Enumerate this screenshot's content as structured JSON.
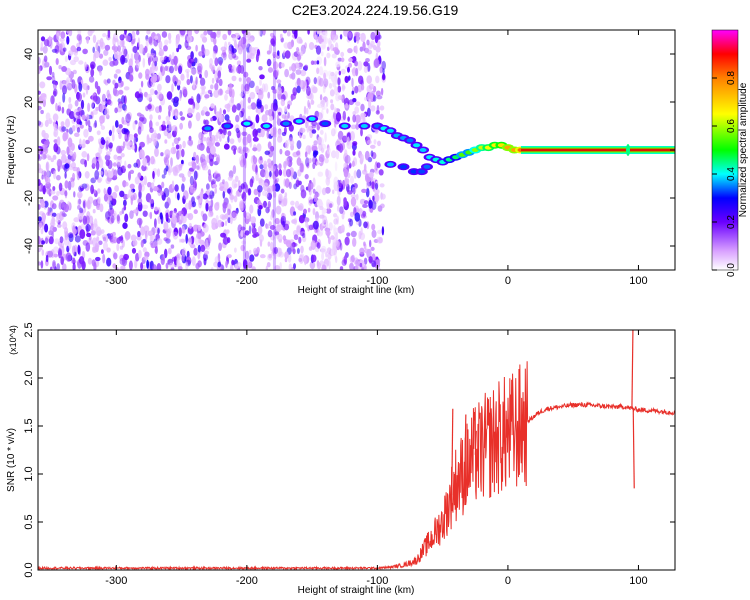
{
  "title": "C2E3.2024.224.19.56.G19",
  "chart_data": [
    {
      "type": "heatmap",
      "xlabel": "Height of straight line (km)",
      "ylabel": "Frequency (Hz)",
      "xlim": [
        -360,
        128
      ],
      "ylim": [
        -50,
        50
      ],
      "xticks": [
        -300,
        -200,
        -100,
        0,
        100
      ],
      "yticks": [
        -40,
        -20,
        0,
        20,
        40
      ],
      "colorbar": {
        "label": "Normalized spectral amplitude",
        "range": [
          0,
          1
        ],
        "ticks": [
          0.0,
          0.2,
          0.4,
          0.6,
          0.8
        ],
        "colormap": "white-purple-blue-cyan-green-yellow-red"
      },
      "noise_region_x": [
        -360,
        -95
      ],
      "ridge": [
        [
          -230,
          9
        ],
        [
          -215,
          10
        ],
        [
          -200,
          11
        ],
        [
          -185,
          10
        ],
        [
          -170,
          11
        ],
        [
          -160,
          12
        ],
        [
          -150,
          13
        ],
        [
          -140,
          11
        ],
        [
          -125,
          10
        ],
        [
          -110,
          10
        ],
        [
          -100,
          10
        ],
        [
          -95,
          9
        ],
        [
          -90,
          8
        ],
        [
          -85,
          6
        ],
        [
          -80,
          5
        ],
        [
          -75,
          4
        ],
        [
          -70,
          2
        ],
        [
          -65,
          0
        ],
        [
          -60,
          -3
        ],
        [
          -55,
          -4
        ],
        [
          -50,
          -5
        ],
        [
          -45,
          -4
        ],
        [
          -40,
          -3
        ],
        [
          -35,
          -2
        ],
        [
          -30,
          -1
        ],
        [
          -25,
          0
        ],
        [
          -20,
          1
        ],
        [
          -15,
          1
        ],
        [
          -10,
          2
        ],
        [
          -5,
          2
        ],
        [
          0,
          1
        ],
        [
          5,
          0
        ],
        [
          10,
          0
        ]
      ],
      "lower_branch": [
        [
          -90,
          -6
        ],
        [
          -80,
          -7
        ],
        [
          -72,
          -9
        ],
        [
          -66,
          -9
        ],
        [
          -62,
          -7
        ]
      ],
      "carrier": {
        "x_start": 10,
        "x_end": 128,
        "freq": 0,
        "amplitude": 1.0
      },
      "spike_x": 92
    },
    {
      "type": "line",
      "xlabel": "Height of straight line (km)",
      "ylabel": "SNR (10 * v/v)",
      "y_multiplier": "(x10^4)",
      "xlim": [
        -360,
        128
      ],
      "ylim": [
        0,
        2.5
      ],
      "xticks": [
        -300,
        -200,
        -100,
        0,
        100
      ],
      "yticks": [
        0.0,
        0.5,
        1.0,
        1.5,
        2.0,
        2.5
      ],
      "series": [
        {
          "color": "#e8302a",
          "x": [
            -360,
            -300,
            -250,
            -200,
            -150,
            -110,
            -100,
            -90,
            -80,
            -70,
            -60,
            -50,
            -45,
            -40,
            -35,
            -30,
            -25,
            -20,
            -15,
            -10,
            -5,
            0,
            5,
            10,
            15,
            20,
            25,
            30,
            40,
            50,
            60,
            70,
            80,
            90,
            95,
            100,
            110,
            120,
            128
          ],
          "y": [
            0.02,
            0.02,
            0.02,
            0.02,
            0.02,
            0.02,
            0.02,
            0.03,
            0.05,
            0.1,
            0.3,
            0.5,
            0.7,
            0.9,
            1.0,
            1.1,
            1.2,
            1.25,
            1.3,
            1.35,
            1.4,
            1.4,
            1.45,
            1.5,
            1.55,
            1.6,
            1.65,
            1.68,
            1.7,
            1.72,
            1.72,
            1.71,
            1.7,
            1.7,
            1.68,
            1.67,
            1.66,
            1.65,
            1.64
          ]
        }
      ],
      "spikes": [
        [
          -43,
          1.68
        ],
        [
          -33,
          1.62
        ],
        [
          -25,
          1.45
        ],
        [
          -18,
          1.55
        ],
        [
          95,
          2.5
        ],
        [
          96,
          0.85
        ]
      ]
    }
  ]
}
